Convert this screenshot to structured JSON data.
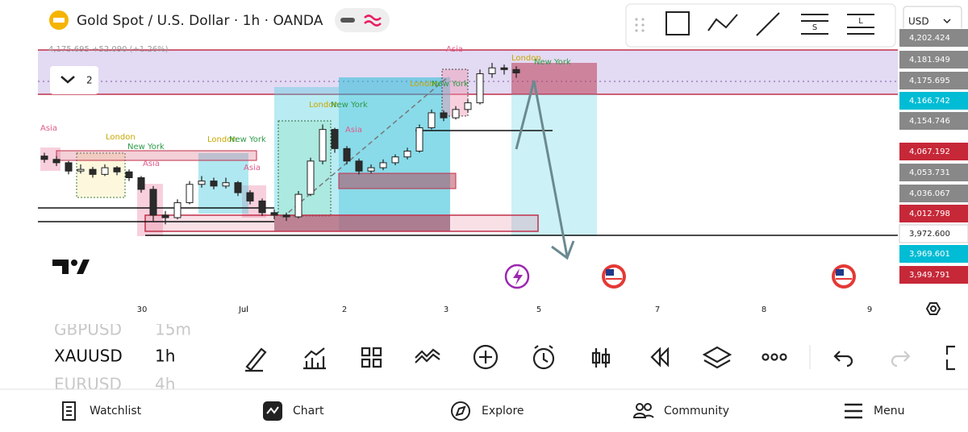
{
  "header": {
    "title": "Gold Spot / U.S. Dollar · 1h · OANDA",
    "quote": "4,175.695 +52.090 (+1.26%)",
    "collapse_count": "2",
    "currency": "USD"
  },
  "drawing_toolbar": {
    "labels": [
      "S",
      "L"
    ]
  },
  "chart": {
    "type": "candlestick",
    "ylim": [
      3900,
      4210
    ],
    "up_color": "#ffffff",
    "down_color": "#2b2b2b",
    "candles": [
      [
        4066,
        4070,
        4058,
        4062
      ],
      [
        4062,
        4066,
        4054,
        4058
      ],
      [
        4058,
        4060,
        4044,
        4048
      ],
      [
        4048,
        4056,
        4045,
        4050
      ],
      [
        4050,
        4053,
        4040,
        4044
      ],
      [
        4044,
        4056,
        4042,
        4052
      ],
      [
        4052,
        4054,
        4043,
        4047
      ],
      [
        4047,
        4050,
        4036,
        4040
      ],
      [
        4040,
        4042,
        4022,
        4026
      ],
      [
        4026,
        4030,
        3988,
        3995
      ],
      [
        3995,
        4000,
        3984,
        3992
      ],
      [
        3992,
        4014,
        3990,
        4010
      ],
      [
        4010,
        4036,
        4008,
        4032
      ],
      [
        4032,
        4042,
        4028,
        4036
      ],
      [
        4036,
        4040,
        4026,
        4030
      ],
      [
        4030,
        4040,
        4027,
        4034
      ],
      [
        4034,
        4036,
        4018,
        4022
      ],
      [
        4022,
        4025,
        4008,
        4012
      ],
      [
        4012,
        4015,
        3994,
        3998
      ],
      [
        3998,
        4002,
        3990,
        3995
      ],
      [
        3995,
        3998,
        3988,
        3993
      ],
      [
        3993,
        4024,
        3991,
        4020
      ],
      [
        4020,
        4064,
        4018,
        4060
      ],
      [
        4060,
        4104,
        4056,
        4098
      ],
      [
        4098,
        4100,
        4070,
        4075
      ],
      [
        4075,
        4078,
        4056,
        4060
      ],
      [
        4060,
        4063,
        4044,
        4048
      ],
      [
        4048,
        4056,
        4045,
        4052
      ],
      [
        4052,
        4062,
        4049,
        4058
      ],
      [
        4058,
        4068,
        4055,
        4065
      ],
      [
        4065,
        4076,
        4062,
        4072
      ],
      [
        4072,
        4104,
        4070,
        4100
      ],
      [
        4100,
        4122,
        4098,
        4118
      ],
      [
        4118,
        4121,
        4108,
        4112
      ],
      [
        4112,
        4126,
        4110,
        4122
      ],
      [
        4122,
        4134,
        4118,
        4130
      ],
      [
        4130,
        4170,
        4128,
        4165
      ],
      [
        4165,
        4178,
        4160,
        4172
      ],
      [
        4172,
        4176,
        4164,
        4170
      ],
      [
        4170,
        4174,
        4160,
        4166
      ]
    ],
    "price_labels": [
      {
        "label": "4,202.424",
        "color": "#888888"
      },
      {
        "label": "4,181.949",
        "color": "#888888"
      },
      {
        "label": "4,175.695",
        "color": "#888888"
      },
      {
        "label": "4,166.742",
        "color": "#00bcd4"
      },
      {
        "label": "4,154.746",
        "color": "#888888"
      },
      {
        "label": "4,067.192",
        "color": "#c62838"
      },
      {
        "label": "4,053.731",
        "color": "#888888"
      },
      {
        "label": "4,036.067",
        "color": "#888888"
      },
      {
        "label": "4,012.798",
        "color": "#c62838"
      },
      {
        "label": "3,972.600",
        "color": "#ffffff"
      },
      {
        "label": "3,969.601",
        "color": "#00bcd4"
      },
      {
        "label": "3,949.791",
        "color": "#c62838"
      }
    ],
    "time_labels": [
      "30",
      "Jul",
      "2",
      "3",
      "5",
      "7",
      "8",
      "9"
    ],
    "session_labels": [
      "Asia",
      "London",
      "New York",
      "Asia",
      "London",
      "New York",
      "Asia",
      "London",
      "New York",
      "Asia",
      "London",
      "New York",
      "Asia",
      "London",
      "New York"
    ]
  },
  "symbols": [
    {
      "name": "GBPUSD",
      "interval": "15m"
    },
    {
      "name": "XAUUSD",
      "interval": "1h"
    },
    {
      "name": "EURUSD",
      "interval": "4h"
    }
  ],
  "nav": [
    "Watchlist",
    "Chart",
    "Explore",
    "Community",
    "Menu"
  ]
}
